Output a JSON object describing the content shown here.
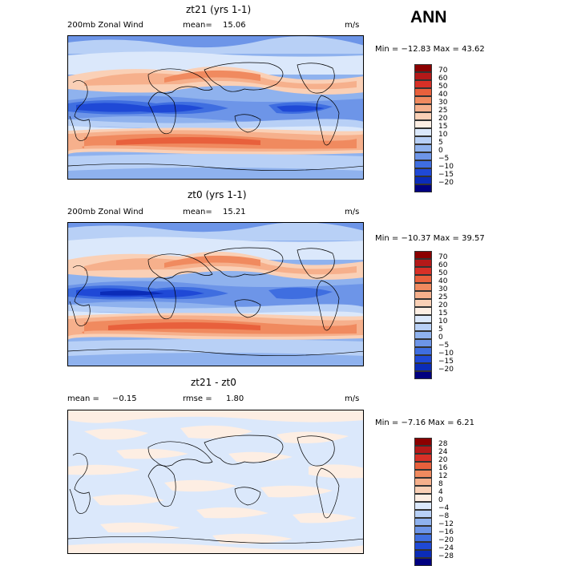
{
  "figure": {
    "season": "ANN",
    "panels": [
      {
        "id": "top",
        "title": "zt21 (yrs 1-1)",
        "left_label": "200mb Zonal Wind",
        "stat_label": "mean=",
        "stat_value": "15.06",
        "units": "m/s",
        "minmax": "Min = −12.83 Max = 43.62",
        "colorbar": {
          "labels": [
            "70",
            "60",
            "50",
            "40",
            "30",
            "25",
            "20",
            "15",
            "10",
            "5",
            "0",
            "−5",
            "−10",
            "−15",
            "−20"
          ],
          "colors": [
            "#8b0000",
            "#b41919",
            "#d73027",
            "#e8603c",
            "#f08a5f",
            "#f6b08c",
            "#fad0b6",
            "#fdeee3",
            "#dbe8fb",
            "#b8d0f6",
            "#8fb2ee",
            "#6d95e8",
            "#3f6ee0",
            "#1f49d6",
            "#0b2cb8",
            "#000080"
          ]
        }
      },
      {
        "id": "middle",
        "title": "zt0 (yrs 1-1)",
        "left_label": "200mb Zonal Wind",
        "stat_label": "mean=",
        "stat_value": "15.21",
        "units": "m/s",
        "minmax": "Min = −10.37 Max = 39.57",
        "colorbar": {
          "labels": [
            "70",
            "60",
            "50",
            "40",
            "30",
            "25",
            "20",
            "15",
            "10",
            "5",
            "0",
            "−5",
            "−10",
            "−15",
            "−20"
          ],
          "colors": [
            "#8b0000",
            "#b41919",
            "#d73027",
            "#e8603c",
            "#f08a5f",
            "#f6b08c",
            "#fad0b6",
            "#fdeee3",
            "#dbe8fb",
            "#b8d0f6",
            "#8fb2ee",
            "#6d95e8",
            "#3f6ee0",
            "#1f49d6",
            "#0b2cb8",
            "#000080"
          ]
        }
      },
      {
        "id": "bottom",
        "title": "zt21 - zt0",
        "left_label": "mean =",
        "left_value": "−0.15",
        "stat_label": "rmse =",
        "stat_value": "1.80",
        "units": "m/s",
        "minmax": "Min = −7.16 Max = 6.21",
        "colorbar": {
          "labels": [
            "28",
            "24",
            "20",
            "16",
            "12",
            "8",
            "4",
            "0",
            "−4",
            "−8",
            "−12",
            "−16",
            "−20",
            "−24",
            "−28"
          ],
          "colors": [
            "#8b0000",
            "#b41919",
            "#d73027",
            "#e8603c",
            "#f08a5f",
            "#f6b08c",
            "#fad0b6",
            "#fdeee3",
            "#dbe8fb",
            "#b8d0f6",
            "#8fb2ee",
            "#6d95e8",
            "#3f6ee0",
            "#1f49d6",
            "#0b2cb8",
            "#000080"
          ]
        }
      }
    ]
  }
}
